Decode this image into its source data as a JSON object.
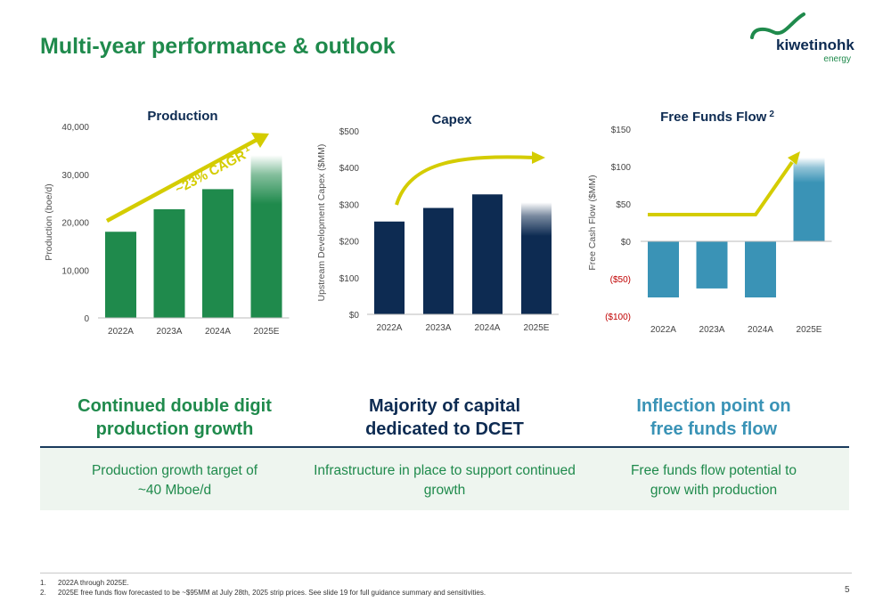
{
  "page_title": "Multi-year performance & outlook",
  "logo": {
    "wordmark": "kiwetinohk",
    "sub": "energy"
  },
  "chart_data": [
    {
      "type": "bar",
      "title": "Production",
      "title_sup": "",
      "ylabel": "Production (boe/d)",
      "categories": [
        "2022A",
        "2023A",
        "2024A",
        "2025E"
      ],
      "values": [
        18000,
        22700,
        26900,
        34000
      ],
      "ylim": [
        0,
        40000
      ],
      "yticks": [
        0,
        10000,
        20000,
        30000,
        40000
      ],
      "ytick_labels": [
        "0",
        "10,000",
        "20,000",
        "30,000",
        "40,000"
      ],
      "annotation": "~23% CAGR",
      "annotation_sup": "1",
      "bar_color": "#1f8a4c",
      "arrow_color": "#d4cc00"
    },
    {
      "type": "bar",
      "title": "Capex",
      "title_sup": "",
      "ylabel": "Upstream Development Capex ($MM)",
      "categories": [
        "2022A",
        "2023A",
        "2024A",
        "2025E"
      ],
      "values": [
        253,
        290,
        327,
        305
      ],
      "ylim": [
        0,
        500
      ],
      "yticks": [
        0,
        100,
        200,
        300,
        400,
        500
      ],
      "ytick_labels": [
        "$0",
        "$100",
        "$200",
        "$300",
        "$400",
        "$500"
      ],
      "bar_color": "#0d2b52",
      "arrow_color": "#d4cc00"
    },
    {
      "type": "bar",
      "title": "Free Funds Flow",
      "title_sup": "2",
      "ylabel": "Free Cash Flow ($MM)",
      "categories": [
        "2022A",
        "2023A",
        "2024A",
        "2025E"
      ],
      "values": [
        -75,
        -63,
        -75,
        112
      ],
      "ylim": [
        -100,
        150
      ],
      "yticks": [
        -100,
        -50,
        0,
        50,
        100,
        150
      ],
      "ytick_labels": [
        "($100)",
        "($50)",
        "$0",
        "$50",
        "$100",
        "$150"
      ],
      "bar_color": "#3a93b6",
      "negative_label_color": "#c00000",
      "arrow_color": "#d4cc00"
    }
  ],
  "columns": [
    {
      "heading": "Continued double digit production growth",
      "heading_lines": [
        "Continued double digit",
        "production growth"
      ],
      "desc_lines": [
        "Production growth target of",
        "~40 Mboe/d"
      ]
    },
    {
      "heading": "Majority of capital dedicated to DCET",
      "heading_lines": [
        "Majority of capital",
        "dedicated to DCET"
      ],
      "desc_lines": [
        "Infrastructure in place to support continued",
        "growth"
      ]
    },
    {
      "heading": "Inflection point on free funds flow",
      "heading_lines": [
        "Inflection point on",
        "free funds flow"
      ],
      "desc_lines": [
        "Free funds flow potential to",
        "grow with production"
      ]
    }
  ],
  "footnotes": [
    {
      "num": "1.",
      "text": "2022A through 2025E."
    },
    {
      "num": "2.",
      "text": "2025E free funds flow forecasted to be ~$95MM at July 28th, 2025 strip prices. See slide 19 for full guidance summary and sensitivities."
    }
  ],
  "page_number": "5"
}
